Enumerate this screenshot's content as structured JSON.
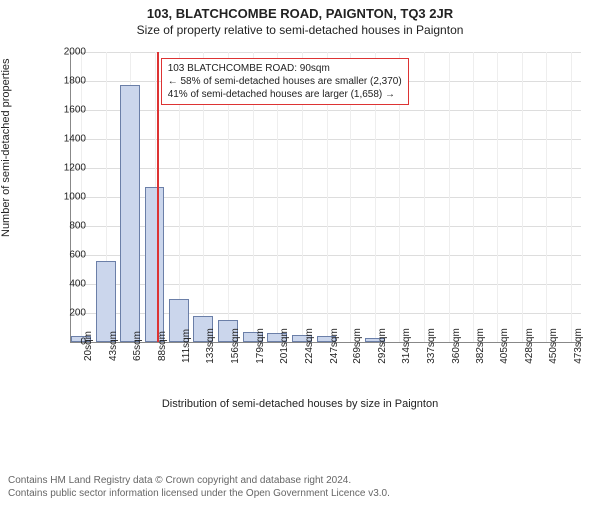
{
  "header": {
    "title_main": "103, BLATCHCOMBE ROAD, PAIGNTON, TQ3 2JR",
    "title_sub": "Size of property relative to semi-detached houses in Paignton"
  },
  "chart": {
    "type": "histogram",
    "ylabel": "Number of semi-detached properties",
    "xlabel": "Distribution of semi-detached houses by size in Paignton",
    "ylim": [
      0,
      2000
    ],
    "ytick_step": 200,
    "background_color": "#ffffff",
    "grid_color": "#dddddd",
    "bar_fill": "#cbd6ec",
    "bar_stroke": "#6b7fa8",
    "marker_color": "#d33",
    "marker_x": 90,
    "xticks": [
      20,
      43,
      65,
      88,
      111,
      133,
      156,
      179,
      201,
      224,
      247,
      269,
      292,
      314,
      337,
      360,
      382,
      405,
      428,
      450,
      473
    ],
    "xtick_unit": "sqm",
    "bars": [
      {
        "x": 20,
        "v": 40
      },
      {
        "x": 43,
        "v": 560
      },
      {
        "x": 65,
        "v": 1770
      },
      {
        "x": 88,
        "v": 1070
      },
      {
        "x": 111,
        "v": 300
      },
      {
        "x": 133,
        "v": 180
      },
      {
        "x": 156,
        "v": 150
      },
      {
        "x": 179,
        "v": 70
      },
      {
        "x": 201,
        "v": 60
      },
      {
        "x": 224,
        "v": 50
      },
      {
        "x": 247,
        "v": 40
      },
      {
        "x": 269,
        "v": 0
      },
      {
        "x": 292,
        "v": 30
      },
      {
        "x": 314,
        "v": 0
      },
      {
        "x": 337,
        "v": 0
      },
      {
        "x": 360,
        "v": 0
      },
      {
        "x": 382,
        "v": 0
      },
      {
        "x": 405,
        "v": 0
      },
      {
        "x": 428,
        "v": 0
      },
      {
        "x": 450,
        "v": 0
      },
      {
        "x": 473,
        "v": 0
      }
    ],
    "annot": {
      "line1": "103 BLATCHCOMBE ROAD: 90sqm",
      "line2": "← 58% of semi-detached houses are smaller (2,370)",
      "line3": "41% of semi-detached houses are larger (1,658) →"
    }
  },
  "footer": {
    "line1": "Contains HM Land Registry data © Crown copyright and database right 2024.",
    "line2": "Contains public sector information licensed under the Open Government Licence v3.0."
  }
}
